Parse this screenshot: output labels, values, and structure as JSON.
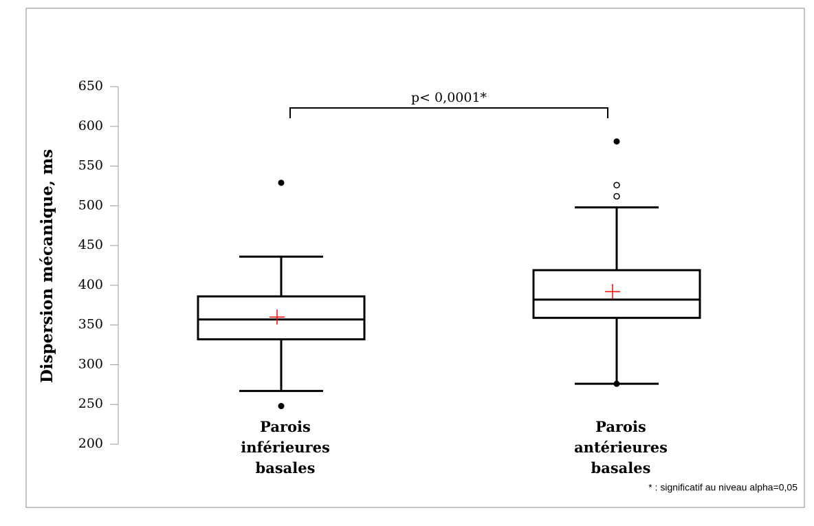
{
  "chart_data": {
    "type": "box",
    "ylabel": "Dispersion mécanique, ms",
    "categories": [
      "Parois inférieures basales",
      "Parois antérieures basales"
    ],
    "boxes": [
      {
        "whisker_low": 267,
        "q1": 332,
        "median": 357,
        "q3": 386,
        "whisker_high": 436,
        "mean": 360,
        "min_max_points": [
          529,
          248
        ],
        "outliers": []
      },
      {
        "whisker_low": 276,
        "q1": 359,
        "median": 382,
        "q3": 419,
        "whisker_high": 498,
        "mean": 392,
        "min_max_points": [
          581,
          276
        ],
        "outliers": [
          526,
          512
        ]
      }
    ],
    "color": "#000000",
    "mean_color": "#ff0000",
    "ylim": [
      200,
      650
    ],
    "yticks": [
      200,
      250,
      300,
      350,
      400,
      450,
      500,
      550,
      600,
      650
    ],
    "annotation": "p< 0,0001*",
    "footnote": "* : significatif au niveau alpha=0,05"
  }
}
